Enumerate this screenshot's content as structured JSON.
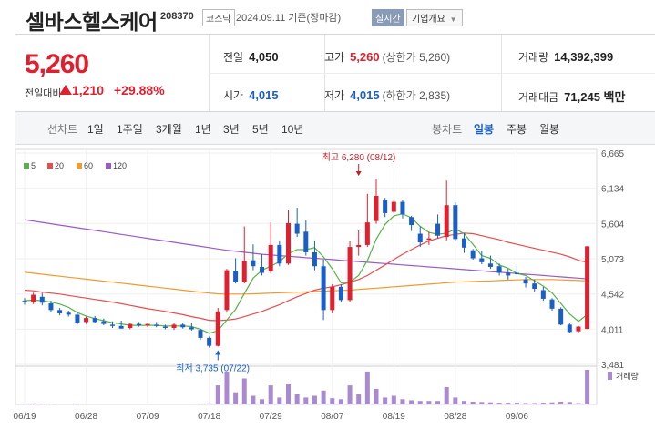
{
  "header": {
    "title": "셀바스헬스케어",
    "code": "208370",
    "market": "코스닥",
    "date_text": "2024.09.11  기준(장마감)",
    "realtime_label": "실시간",
    "company_info_label": "기업개요"
  },
  "quote": {
    "price": "5,260",
    "change_label": "전일대비",
    "change_value": "1,210",
    "change_pct": "+29.88%",
    "prev_close_label": "전일",
    "prev_close": "4,050",
    "high_label": "고가",
    "high": "5,260",
    "high_note": "(상한가 5,260)",
    "volume_label": "거래량",
    "volume": "14,392,399",
    "open_label": "시가",
    "open": "4,015",
    "low_label": "저가",
    "low": "4,015",
    "low_note": "(하한가 2,835)",
    "amount_label": "거래대금",
    "amount": "71,245 백만"
  },
  "tabs": {
    "line_chart": "선차트",
    "periods": [
      "1일",
      "1주일",
      "3개월",
      "1년",
      "3년",
      "5년",
      "10년"
    ],
    "candle_chart": "봉차트",
    "candle_periods": [
      "일봉",
      "주봉",
      "월봉"
    ],
    "active_candle": "일봉"
  },
  "colors": {
    "up": "#e0202f",
    "down": "#1a5fc8",
    "ma5": "#56b347",
    "ma20": "#e84c4c",
    "ma60": "#f29a2e",
    "ma120": "#9a5bc4"
  },
  "chart_data": {
    "type": "candlestick",
    "legend": [
      {
        "name": "5",
        "color": "#56b347"
      },
      {
        "name": "20",
        "color": "#e84c4c"
      },
      {
        "name": "60",
        "color": "#f29a2e"
      },
      {
        "name": "120",
        "color": "#9a5bc4"
      }
    ],
    "y_ticks": [
      6665,
      6134,
      5604,
      5073,
      4542,
      4011,
      3481
    ],
    "y_tick_labels": [
      "6,665",
      "6,134",
      "5,604",
      "5,073",
      "4,542",
      "4,011",
      "3,481"
    ],
    "ylim": [
      3481,
      6665
    ],
    "x_labels": [
      {
        "label": "06/19",
        "index": 0
      },
      {
        "label": "06/28",
        "index": 7
      },
      {
        "label": "07/09",
        "index": 14
      },
      {
        "label": "07/18",
        "index": 21
      },
      {
        "label": "07/29",
        "index": 28
      },
      {
        "label": "08/07",
        "index": 35
      },
      {
        "label": "08/19",
        "index": 42
      },
      {
        "label": "08/28",
        "index": 49
      },
      {
        "label": "09/06",
        "index": 56
      }
    ],
    "annotations": {
      "high": {
        "text": "최고 6,280 (08/12)",
        "index": 38,
        "value": 6280
      },
      "low": {
        "text": "최저 3,735 (07/22)",
        "index": 22,
        "value": 3735
      }
    },
    "volume_label": "거래량",
    "candles": [
      {
        "o": 4440,
        "h": 4480,
        "l": 4380,
        "c": 4430
      },
      {
        "o": 4420,
        "h": 4560,
        "l": 4390,
        "c": 4530
      },
      {
        "o": 4500,
        "h": 4560,
        "l": 4370,
        "c": 4410
      },
      {
        "o": 4400,
        "h": 4440,
        "l": 4270,
        "c": 4300
      },
      {
        "o": 4300,
        "h": 4330,
        "l": 4220,
        "c": 4250
      },
      {
        "o": 4260,
        "h": 4290,
        "l": 4200,
        "c": 4230
      },
      {
        "o": 4230,
        "h": 4260,
        "l": 4080,
        "c": 4100
      },
      {
        "o": 4120,
        "h": 4200,
        "l": 4090,
        "c": 4180
      },
      {
        "o": 4180,
        "h": 4210,
        "l": 4100,
        "c": 4120
      },
      {
        "o": 4130,
        "h": 4170,
        "l": 4070,
        "c": 4090
      },
      {
        "o": 4080,
        "h": 4130,
        "l": 4030,
        "c": 4060
      },
      {
        "o": 4060,
        "h": 4140,
        "l": 4020,
        "c": 4020
      },
      {
        "o": 4030,
        "h": 4100,
        "l": 4010,
        "c": 4090
      },
      {
        "o": 4090,
        "h": 4120,
        "l": 4050,
        "c": 4070
      },
      {
        "o": 4070,
        "h": 4110,
        "l": 4040,
        "c": 4090
      },
      {
        "o": 4080,
        "h": 4120,
        "l": 4040,
        "c": 4060
      },
      {
        "o": 4050,
        "h": 4080,
        "l": 4010,
        "c": 4030
      },
      {
        "o": 4030,
        "h": 4100,
        "l": 4000,
        "c": 4080
      },
      {
        "o": 4080,
        "h": 4110,
        "l": 4020,
        "c": 4040
      },
      {
        "o": 4040,
        "h": 4100,
        "l": 3990,
        "c": 4010
      },
      {
        "o": 4000,
        "h": 4020,
        "l": 3850,
        "c": 3880
      },
      {
        "o": 3880,
        "h": 3900,
        "l": 3735,
        "c": 3760
      },
      {
        "o": 3760,
        "h": 4330,
        "l": 3750,
        "c": 4280
      },
      {
        "o": 4300,
        "h": 4920,
        "l": 4260,
        "c": 4900
      },
      {
        "o": 4890,
        "h": 5080,
        "l": 4700,
        "c": 4720
      },
      {
        "o": 4720,
        "h": 5560,
        "l": 4700,
        "c": 5040
      },
      {
        "o": 5050,
        "h": 5290,
        "l": 4900,
        "c": 4960
      },
      {
        "o": 4950,
        "h": 5140,
        "l": 4820,
        "c": 4860
      },
      {
        "o": 4880,
        "h": 5620,
        "l": 4850,
        "c": 5280
      },
      {
        "o": 5280,
        "h": 5350,
        "l": 4960,
        "c": 5000
      },
      {
        "o": 5000,
        "h": 5800,
        "l": 4980,
        "c": 5610
      },
      {
        "o": 5600,
        "h": 5840,
        "l": 5400,
        "c": 5450
      },
      {
        "o": 5480,
        "h": 5650,
        "l": 5120,
        "c": 5170
      },
      {
        "o": 5170,
        "h": 5350,
        "l": 4900,
        "c": 4960
      },
      {
        "o": 4960,
        "h": 5060,
        "l": 4150,
        "c": 4300
      },
      {
        "o": 4300,
        "h": 4690,
        "l": 4250,
        "c": 4650
      },
      {
        "o": 4650,
        "h": 4690,
        "l": 4420,
        "c": 4450
      },
      {
        "o": 4450,
        "h": 5340,
        "l": 4420,
        "c": 5250
      },
      {
        "o": 5250,
        "h": 5500,
        "l": 5120,
        "c": 5280
      },
      {
        "o": 5280,
        "h": 6050,
        "l": 5250,
        "c": 5620
      },
      {
        "o": 5640,
        "h": 6280,
        "l": 5600,
        "c": 6020
      },
      {
        "o": 5960,
        "h": 5990,
        "l": 5700,
        "c": 5760
      },
      {
        "o": 5780,
        "h": 5970,
        "l": 5760,
        "c": 5930
      },
      {
        "o": 5930,
        "h": 5960,
        "l": 5680,
        "c": 5740
      },
      {
        "o": 5700,
        "h": 5720,
        "l": 5490,
        "c": 5580
      },
      {
        "o": 5450,
        "h": 5560,
        "l": 5250,
        "c": 5320
      },
      {
        "o": 5360,
        "h": 5480,
        "l": 5280,
        "c": 5380
      },
      {
        "o": 5600,
        "h": 5740,
        "l": 5380,
        "c": 5420
      },
      {
        "o": 5400,
        "h": 6250,
        "l": 5350,
        "c": 5880
      },
      {
        "o": 5880,
        "h": 5920,
        "l": 5340,
        "c": 5370
      },
      {
        "o": 5380,
        "h": 5460,
        "l": 5160,
        "c": 5240
      },
      {
        "o": 5200,
        "h": 5220,
        "l": 5060,
        "c": 5080
      },
      {
        "o": 5080,
        "h": 5190,
        "l": 4990,
        "c": 5020
      },
      {
        "o": 5000,
        "h": 5120,
        "l": 4920,
        "c": 4950
      },
      {
        "o": 4960,
        "h": 5000,
        "l": 4820,
        "c": 4860
      },
      {
        "o": 4860,
        "h": 4920,
        "l": 4760,
        "c": 4820
      },
      {
        "o": 4860,
        "h": 4960,
        "l": 4820,
        "c": 4840
      },
      {
        "o": 4760,
        "h": 4800,
        "l": 4640,
        "c": 4700
      },
      {
        "o": 4700,
        "h": 4760,
        "l": 4580,
        "c": 4620
      },
      {
        "o": 4600,
        "h": 4650,
        "l": 4440,
        "c": 4470
      },
      {
        "o": 4460,
        "h": 4480,
        "l": 4290,
        "c": 4320
      },
      {
        "o": 4320,
        "h": 4340,
        "l": 4070,
        "c": 4080
      },
      {
        "o": 4080,
        "h": 4100,
        "l": 3960,
        "c": 3970
      },
      {
        "o": 3980,
        "h": 4060,
        "l": 3960,
        "c": 4050
      },
      {
        "o": 4015,
        "h": 5260,
        "l": 4015,
        "c": 5260
      }
    ],
    "volumes": [
      0.02,
      0.03,
      0.02,
      0.02,
      0.01,
      0.01,
      0.02,
      0.01,
      0.01,
      0.01,
      0.01,
      0.01,
      0.01,
      0.01,
      0.01,
      0.01,
      0.01,
      0.01,
      0.01,
      0.01,
      0.02,
      0.03,
      0.55,
      0.95,
      0.35,
      0.75,
      0.25,
      0.15,
      0.55,
      0.2,
      0.6,
      0.3,
      0.2,
      0.25,
      0.4,
      0.18,
      0.15,
      0.55,
      0.3,
      0.95,
      0.45,
      0.2,
      0.25,
      0.15,
      0.12,
      0.1,
      0.1,
      0.1,
      0.5,
      0.2,
      0.1,
      0.08,
      0.07,
      0.06,
      0.05,
      0.05,
      0.05,
      0.04,
      0.04,
      0.05,
      0.06,
      0.08,
      0.07,
      0.04,
      1.0
    ],
    "ma5": [
      4440,
      4450,
      4440,
      4420,
      4390,
      4340,
      4260,
      4210,
      4170,
      4140,
      4110,
      4090,
      4070,
      4070,
      4070,
      4070,
      4060,
      4060,
      4060,
      4050,
      4010,
      3950,
      3990,
      4150,
      4310,
      4550,
      4780,
      4900,
      4960,
      5030,
      5150,
      5210,
      5210,
      5240,
      5100,
      4920,
      4710,
      4720,
      4820,
      5050,
      5370,
      5590,
      5720,
      5750,
      5690,
      5560,
      5470,
      5440,
      5460,
      5520,
      5450,
      5290,
      5120,
      5080,
      4980,
      4930,
      4850,
      4820,
      4740,
      4660,
      4560,
      4400,
      4240,
      4130,
      4230
    ],
    "ma20": [
      4600,
      4590,
      4570,
      4555,
      4540,
      4520,
      4500,
      4480,
      4460,
      4440,
      4420,
      4395,
      4370,
      4345,
      4320,
      4300,
      4280,
      4255,
      4230,
      4200,
      4175,
      4145,
      4140,
      4150,
      4165,
      4200,
      4240,
      4280,
      4330,
      4380,
      4440,
      4500,
      4550,
      4600,
      4630,
      4650,
      4680,
      4720,
      4760,
      4820,
      4900,
      4980,
      5060,
      5140,
      5210,
      5280,
      5340,
      5380,
      5420,
      5440,
      5460,
      5450,
      5420,
      5390,
      5360,
      5320,
      5290,
      5260,
      5230,
      5200,
      5170,
      5140,
      5100,
      5050,
      5020
    ],
    "ma60": [
      4870,
      4855,
      4840,
      4825,
      4810,
      4795,
      4780,
      4765,
      4750,
      4735,
      4720,
      4705,
      4690,
      4675,
      4660,
      4645,
      4630,
      4615,
      4600,
      4585,
      4570,
      4555,
      4545,
      4540,
      4540,
      4540,
      4545,
      4550,
      4555,
      4560,
      4565,
      4570,
      4575,
      4580,
      4585,
      4590,
      4595,
      4600,
      4610,
      4620,
      4630,
      4640,
      4650,
      4660,
      4670,
      4680,
      4690,
      4700,
      4710,
      4720,
      4725,
      4730,
      4735,
      4740,
      4745,
      4750,
      4755,
      4760,
      4760,
      4760,
      4760,
      4755,
      4750,
      4745,
      4740
    ],
    "ma120": [
      5660,
      5640,
      5620,
      5600,
      5580,
      5560,
      5540,
      5520,
      5500,
      5480,
      5460,
      5440,
      5420,
      5400,
      5380,
      5360,
      5340,
      5320,
      5300,
      5280,
      5260,
      5240,
      5220,
      5200,
      5185,
      5170,
      5155,
      5140,
      5130,
      5120,
      5110,
      5100,
      5090,
      5080,
      5070,
      5060,
      5050,
      5040,
      5030,
      5020,
      5010,
      5000,
      4990,
      4980,
      4970,
      4960,
      4950,
      4940,
      4930,
      4920,
      4910,
      4900,
      4890,
      4880,
      4870,
      4860,
      4850,
      4840,
      4830,
      4820,
      4810,
      4800,
      4790,
      4780,
      4770
    ]
  }
}
